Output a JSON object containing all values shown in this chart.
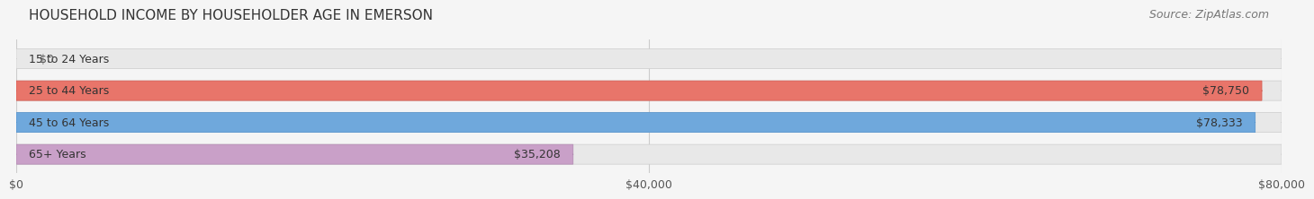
{
  "title": "HOUSEHOLD INCOME BY HOUSEHOLDER AGE IN EMERSON",
  "source": "Source: ZipAtlas.com",
  "categories": [
    "15 to 24 Years",
    "25 to 44 Years",
    "45 to 64 Years",
    "65+ Years"
  ],
  "values": [
    0,
    78750,
    78333,
    35208
  ],
  "bar_colors": [
    "#f5c896",
    "#e8756a",
    "#6fa8dc",
    "#c9a0c8"
  ],
  "bar_edge_colors": [
    "#e0b07a",
    "#d45a50",
    "#5090cc",
    "#b088b0"
  ],
  "value_labels": [
    "$0",
    "$78,750",
    "$78,333",
    "$35,208"
  ],
  "xlim": [
    0,
    80000
  ],
  "xticks": [
    0,
    40000,
    80000
  ],
  "xticklabels": [
    "$0",
    "$40,000",
    "$80,000"
  ],
  "background_color": "#f5f5f5",
  "bar_background_color": "#e8e8e8",
  "title_fontsize": 11,
  "label_fontsize": 9,
  "tick_fontsize": 9,
  "source_fontsize": 9
}
